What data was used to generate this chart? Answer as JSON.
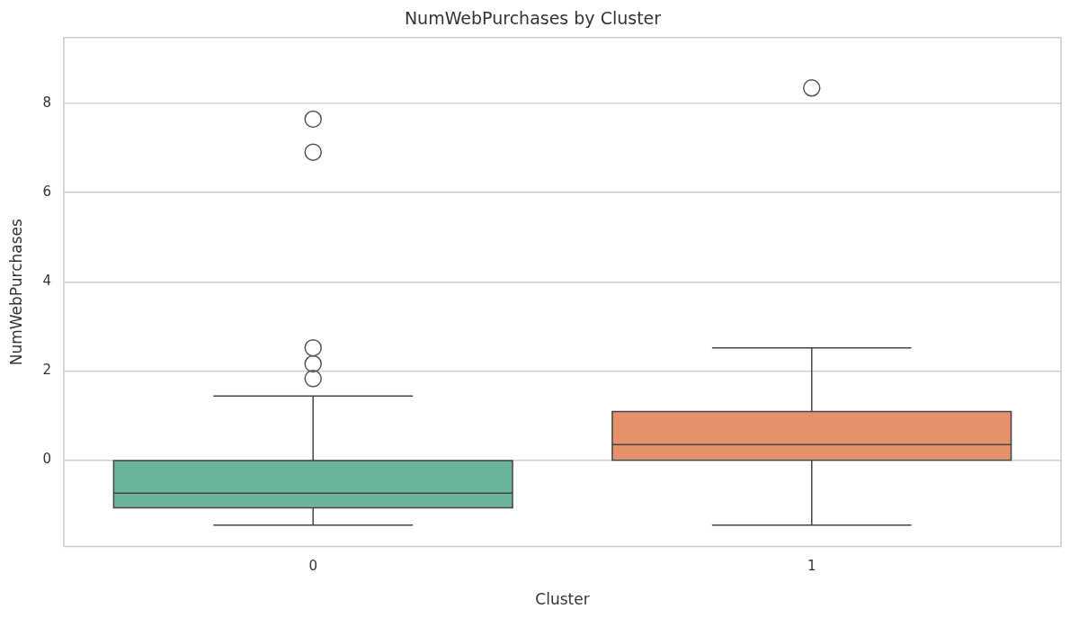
{
  "chart_data": {
    "type": "box",
    "title": "NumWebPurchases by Cluster",
    "xlabel": "Cluster",
    "ylabel": "NumWebPurchases",
    "categories": [
      "0",
      "1"
    ],
    "colors": [
      "#6ab39c",
      "#e5916b"
    ],
    "boxes": [
      {
        "low": -1.46,
        "q1": -1.07,
        "median": -0.74,
        "q3": -0.01,
        "high": 1.44,
        "outliers": [
          1.83,
          2.16,
          2.52,
          6.91,
          7.65
        ]
      },
      {
        "low": -1.46,
        "q1": 0,
        "median": 0.35,
        "q3": 1.09,
        "high": 2.52,
        "outliers": [
          8.35
        ]
      }
    ],
    "ylim": [
      -1.94,
      9.48
    ],
    "yticks": [
      0,
      2,
      4,
      6,
      8
    ],
    "grid": "y",
    "legend": false
  }
}
